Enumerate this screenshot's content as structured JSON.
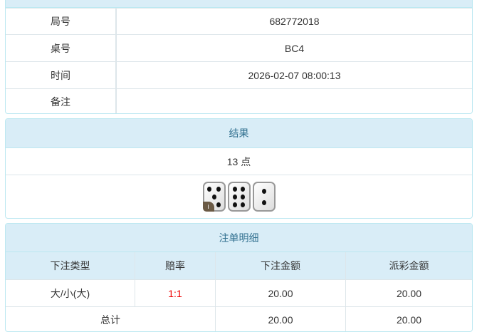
{
  "info": {
    "rows": [
      {
        "label": "局号",
        "value": "682772018"
      },
      {
        "label": "桌号",
        "value": "BC4"
      },
      {
        "label": "时间",
        "value": "2026-02-07 08:00:13"
      },
      {
        "label": "备注",
        "value": ""
      }
    ]
  },
  "result": {
    "title": "结果",
    "points": "13 点",
    "dice": [
      5,
      6,
      2
    ],
    "info_icon": "i"
  },
  "bets": {
    "title": "注单明细",
    "headers": [
      "下注类型",
      "赔率",
      "下注金额",
      "派彩金额"
    ],
    "rows": [
      {
        "type": "大/小(大)",
        "odds": "1:1",
        "amount": "20.00",
        "payout": "20.00"
      }
    ],
    "total": {
      "label": "总计",
      "amount": "20.00",
      "payout": "20.00"
    }
  },
  "colors": {
    "header_bg": "#d9edf7",
    "header_text": "#31708f",
    "odds": "#ee0000"
  }
}
